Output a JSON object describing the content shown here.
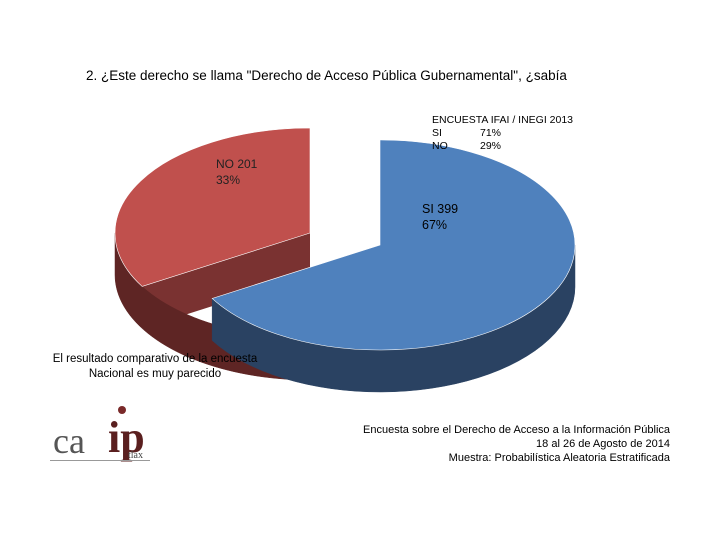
{
  "title": "2. ¿Este derecho se llama \"Derecho de Acceso Pública Gubernamental\", ¿sabía",
  "inegi_box": {
    "title": "ENCUESTA IFAI / INEGI 2013",
    "rows": [
      {
        "label": "SI",
        "value": "71%"
      },
      {
        "label": "NO",
        "value": "29%"
      }
    ]
  },
  "chart_data": {
    "type": "pie",
    "three_d": true,
    "slices": [
      {
        "label": "SI",
        "value": 399,
        "percent": 67,
        "color": "#4f81bd",
        "side_color": "#2a4262"
      },
      {
        "label": "NO",
        "value": 201,
        "percent": 33,
        "color": "#c0504d",
        "side_color": "#5e2524",
        "exploded": true
      }
    ],
    "labels": {
      "no": [
        "NO 201",
        "33%"
      ],
      "si": [
        "SI 399",
        "67%"
      ]
    }
  },
  "note": [
    "El resultado comparativo de la encuesta",
    "Nacional es muy parecido"
  ],
  "survey": [
    "Encuesta sobre el Derecho de Acceso a la Información Pública",
    "18 al 26 de Agosto de 2014",
    "Muestra: Probabilística Aleatoria Estratificada"
  ],
  "logo": {
    "ca": "ca",
    "ip": "ip",
    "tlax": "tlax"
  }
}
